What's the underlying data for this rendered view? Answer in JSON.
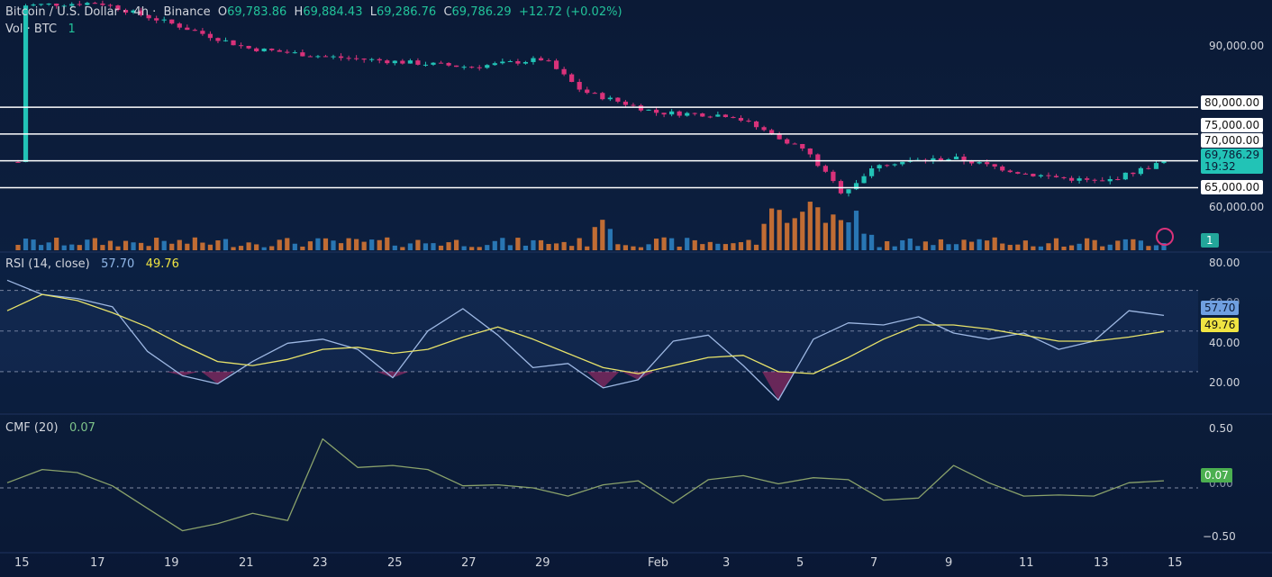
{
  "header": {
    "symbol": "Bitcoin / U.S. Dollar",
    "interval": "4h",
    "exchange": "Binance",
    "o_label": "O",
    "o_value": "69,783.86",
    "h_label": "H",
    "h_value": "69,884.43",
    "l_label": "L",
    "l_value": "69,286.76",
    "c_label": "C",
    "c_value": "69,786.29",
    "change": "+12.72 (+0.02%)",
    "vol_label": "Vol · BTC",
    "vol_value": "1"
  },
  "price_axis": {
    "ticks": [
      "90,000.00",
      "60,000.00"
    ],
    "level_tags": [
      "80,000.00",
      "75,000.00",
      "70,000.00",
      "65,000.00"
    ],
    "last_price": "69,786.29",
    "countdown": "19:32",
    "vol_tag": "1"
  },
  "rsi": {
    "label": "RSI (14, close)",
    "value": "57.70",
    "ma_value": "49.76",
    "ticks": [
      "80.00",
      "40.00",
      "20.00"
    ],
    "overlapped_tick": "60.00"
  },
  "cmf": {
    "label": "CMF (20)",
    "value": "0.07",
    "ticks": [
      "0.50",
      "0.00",
      "−0.50"
    ]
  },
  "time_axis": {
    "labels": [
      "15",
      "17",
      "19",
      "21",
      "23",
      "25",
      "27",
      "29",
      "Feb",
      "3",
      "5",
      "7",
      "9",
      "11",
      "13",
      "15"
    ]
  },
  "colors": {
    "up": "#22c3b6",
    "down": "#d9327a",
    "vol_up": "#2f86c8",
    "vol_down": "#e07a33",
    "rsi": "#9db7e2",
    "rsi_ma": "#e8e36a",
    "cmf": "#8aa26b",
    "levels": "#ffffff"
  },
  "chart_data": [
    {
      "type": "candlestick",
      "title": "Bitcoin / U.S. Dollar 4h Binance",
      "x_labels": [
        "15",
        "17",
        "19",
        "21",
        "23",
        "25",
        "27",
        "29",
        "Feb",
        "3",
        "5",
        "7",
        "9",
        "11",
        "13",
        "15"
      ],
      "close_path": [
        {
          "x": "15",
          "y": 99000
        },
        {
          "x": "17",
          "y": 99500
        },
        {
          "x": "19",
          "y": 95500
        },
        {
          "x": "21",
          "y": 91000
        },
        {
          "x": "23",
          "y": 89500
        },
        {
          "x": "25",
          "y": 88500
        },
        {
          "x": "27",
          "y": 87500
        },
        {
          "x": "29",
          "y": 89000
        },
        {
          "x": "30",
          "y": 83000
        },
        {
          "x": "Feb",
          "y": 79000
        },
        {
          "x": "3",
          "y": 78500
        },
        {
          "x": "5",
          "y": 72000
        },
        {
          "x": "6",
          "y": 64000
        },
        {
          "x": "7",
          "y": 69500
        },
        {
          "x": "9",
          "y": 70500
        },
        {
          "x": "11",
          "y": 67500
        },
        {
          "x": "13",
          "y": 66000
        },
        {
          "x": "15",
          "y": 69786
        }
      ],
      "horizontal_levels": [
        80000,
        75000,
        70000,
        65000
      ],
      "ylim": [
        55000,
        100000
      ]
    },
    {
      "type": "line",
      "title": "RSI (14, close)",
      "series": [
        {
          "name": "RSI",
          "values": [
            75,
            68,
            66,
            62,
            40,
            28,
            24,
            35,
            44,
            46,
            41,
            27,
            50,
            61,
            48,
            32,
            34,
            22,
            26,
            45,
            48,
            33,
            16,
            46,
            54,
            53,
            57,
            49,
            46,
            49,
            41,
            45,
            60,
            57.7
          ]
        },
        {
          "name": "MA",
          "values": [
            60,
            68,
            65,
            59,
            52,
            43,
            35,
            33,
            36,
            41,
            42,
            39,
            41,
            47,
            52,
            46,
            39,
            32,
            29,
            33,
            37,
            38,
            30,
            29,
            37,
            46,
            53,
            53,
            51,
            48,
            45,
            45,
            47,
            49.76
          ]
        }
      ],
      "ylim": [
        10,
        88
      ],
      "bands": [
        70,
        50,
        30
      ]
    },
    {
      "type": "line",
      "title": "CMF (20)",
      "series": [
        {
          "name": "CMF",
          "values": [
            0.05,
            0.18,
            0.15,
            0.02,
            -0.2,
            -0.42,
            -0.35,
            -0.25,
            -0.32,
            0.48,
            0.2,
            0.22,
            0.18,
            0.02,
            0.03,
            0.0,
            -0.08,
            0.03,
            0.07,
            -0.15,
            0.08,
            0.12,
            0.04,
            0.1,
            0.08,
            -0.12,
            -0.1,
            0.22,
            0.05,
            -0.08,
            -0.07,
            -0.08,
            0.05,
            0.07
          ]
        }
      ],
      "ylim": [
        -0.6,
        0.6
      ]
    }
  ]
}
